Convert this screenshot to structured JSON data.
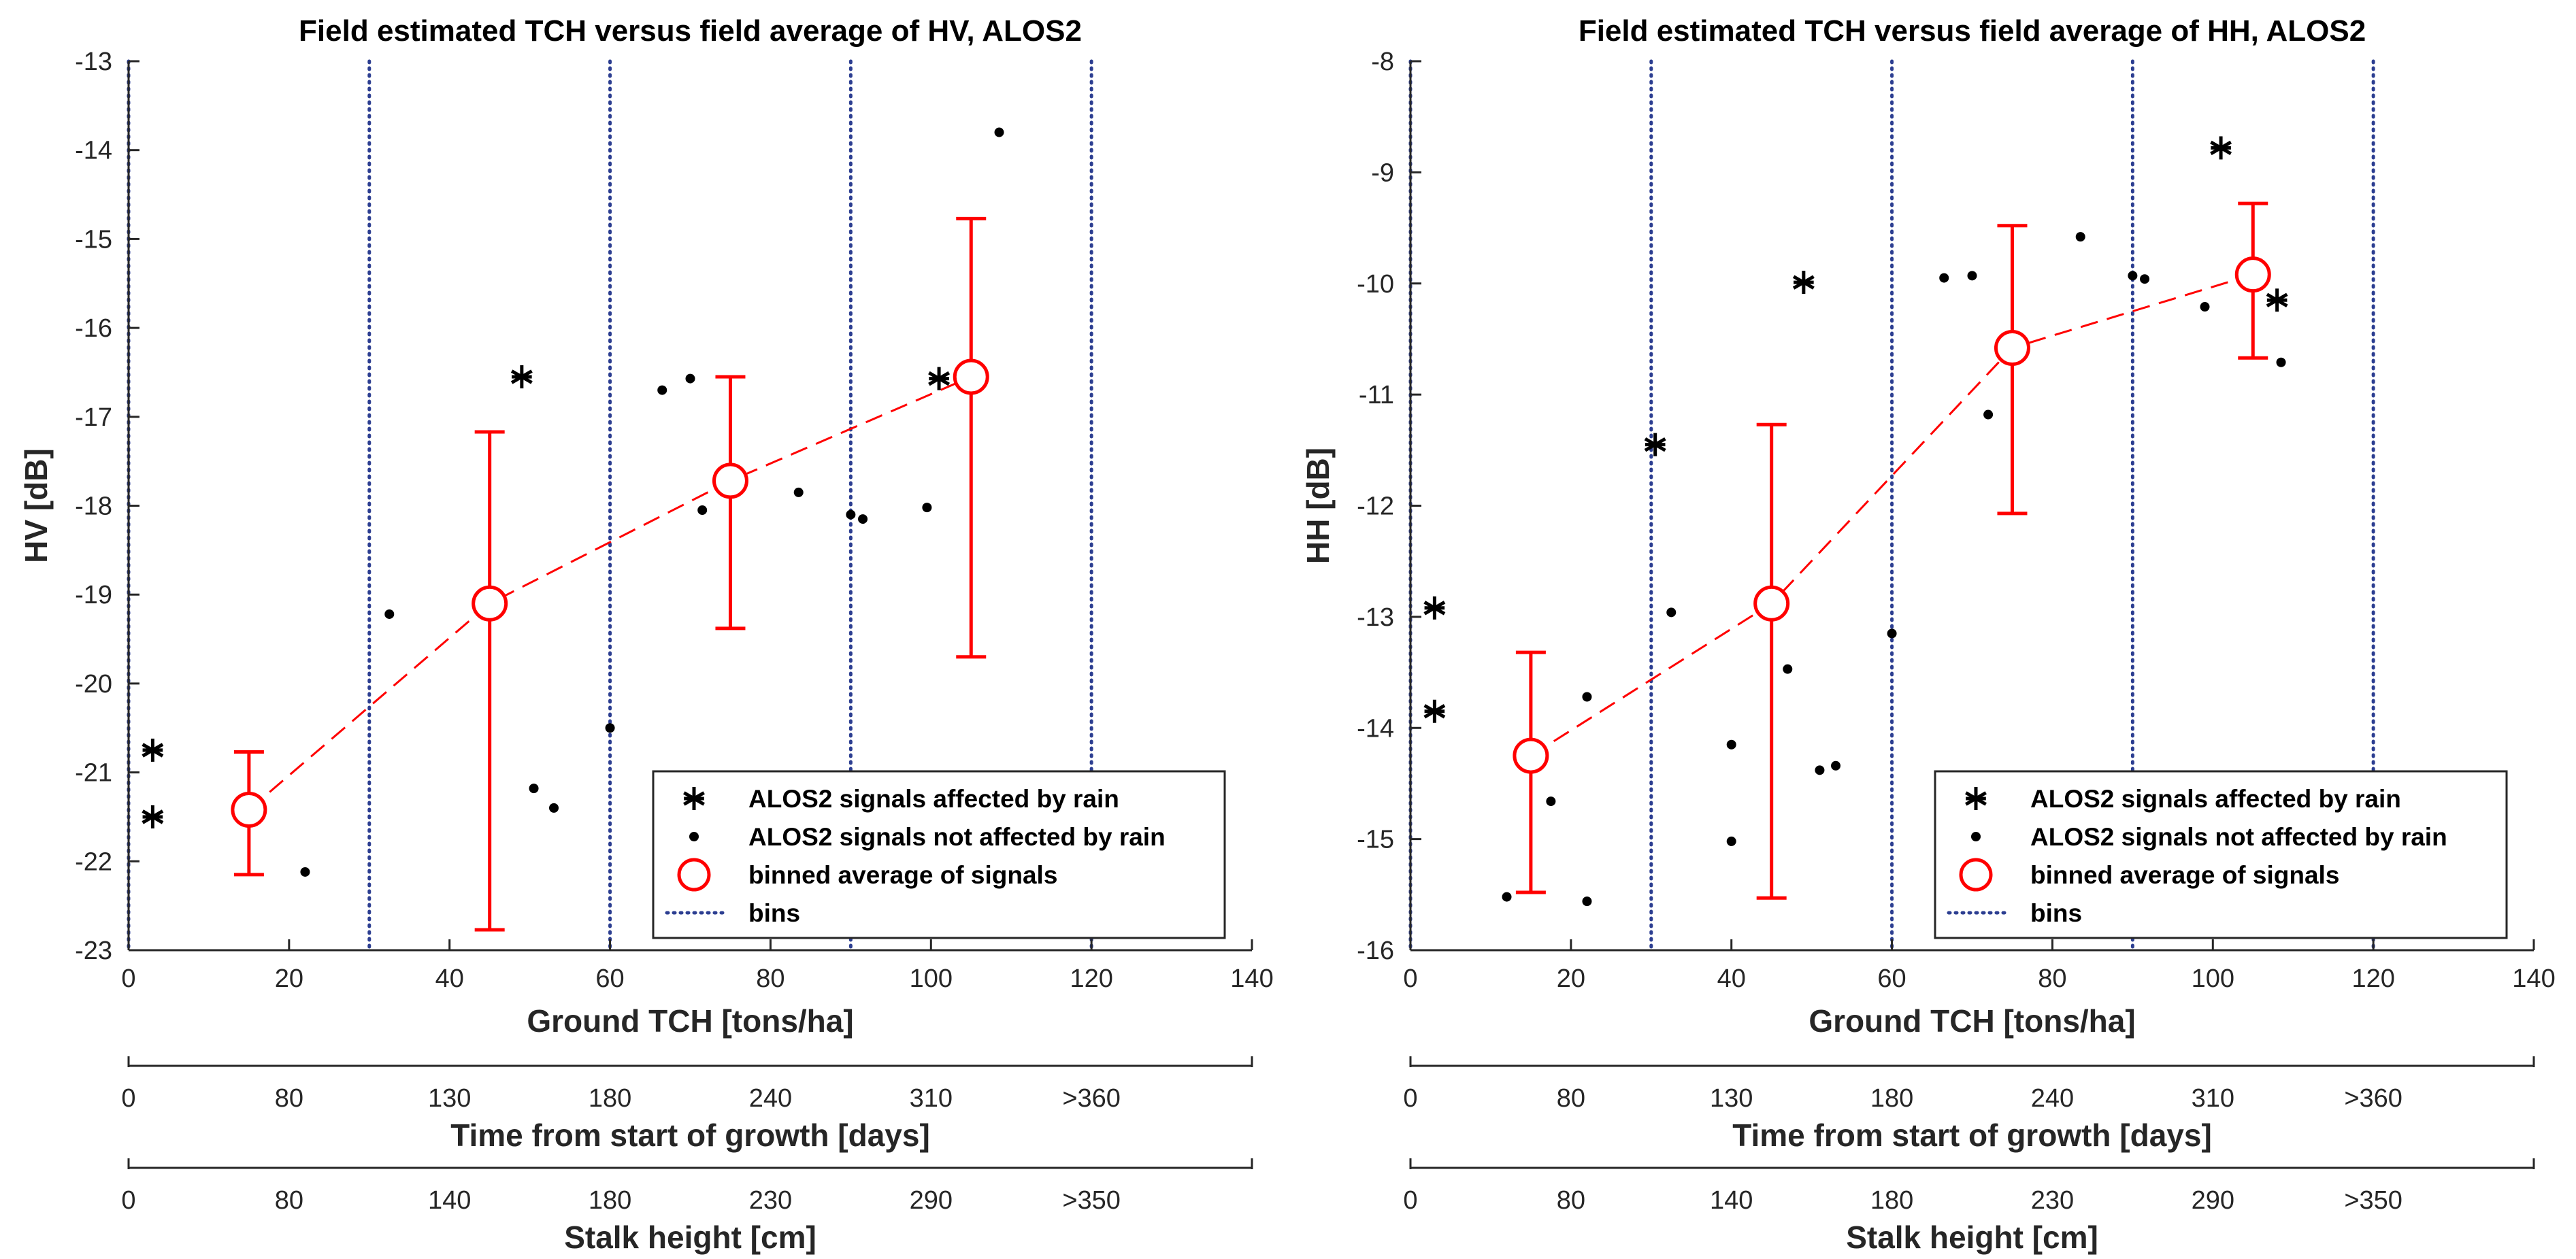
{
  "chart_data": [
    {
      "type": "scatter",
      "title": "Field estimated TCH versus field average of HV, ALOS2",
      "xlabel": "Ground TCH [tons/ha]",
      "ylabel": "HV [dB]",
      "xlim": [
        0,
        140
      ],
      "ylim": [
        -23,
        -13
      ],
      "xticks": [
        "0",
        "20",
        "40",
        "60",
        "80",
        "100",
        "120",
        "140"
      ],
      "yticks": [
        "-23",
        "-22",
        "-21",
        "-20",
        "-19",
        "-18",
        "-17",
        "-16",
        "-15",
        "-14",
        "-13"
      ],
      "bin_edges": [
        0,
        30,
        60,
        90,
        120
      ],
      "series": [
        {
          "name": "ALOS2 signals affected by rain",
          "marker": "asterisk",
          "color": "#000000",
          "x": [
            3,
            3,
            49,
            101
          ],
          "y": [
            -20.75,
            -21.5,
            -16.55,
            -16.57
          ]
        },
        {
          "name": "ALOS2 signals not affected by rain",
          "marker": "dot",
          "color": "#000000",
          "x": [
            22,
            32.5,
            50.5,
            53,
            60,
            66.5,
            70,
            71.5,
            83.5,
            90,
            91.5,
            99.5,
            108.5
          ],
          "y": [
            -22.12,
            -19.22,
            -21.18,
            -21.4,
            -20.5,
            -16.7,
            -16.57,
            -18.05,
            -17.85,
            -18.1,
            -18.15,
            -18.02,
            -13.8
          ]
        },
        {
          "name": "binned average of signals",
          "marker": "circle",
          "color": "#ff0000",
          "x": [
            15,
            45,
            75,
            105
          ],
          "y": [
            -21.42,
            -19.1,
            -17.72,
            -16.55
          ],
          "err_low": [
            -22.15,
            -22.77,
            -19.38,
            -19.7
          ],
          "err_high": [
            -20.77,
            -17.17,
            -16.55,
            -14.77
          ]
        },
        {
          "name": "bins",
          "marker": "dotted-line",
          "color": "#2c3e91"
        }
      ],
      "secondary_axes": [
        {
          "label": "Time from start of growth [days]",
          "ticks": [
            "0",
            "80",
            "130",
            "180",
            "240",
            "310",
            ">360"
          ]
        },
        {
          "label": "Stalk height [cm]",
          "ticks": [
            "0",
            "80",
            "140",
            "180",
            "230",
            "290",
            ">350"
          ]
        }
      ]
    },
    {
      "type": "scatter",
      "title": "Field estimated TCH versus field average of HH, ALOS2",
      "xlabel": "Ground TCH [tons/ha]",
      "ylabel": "HH [dB]",
      "xlim": [
        0,
        140
      ],
      "ylim": [
        -16,
        -8
      ],
      "xticks": [
        "0",
        "20",
        "40",
        "60",
        "80",
        "100",
        "120",
        "140"
      ],
      "yticks": [
        "-16",
        "-15",
        "-14",
        "-13",
        "-12",
        "-11",
        "-10",
        "-9",
        "-8"
      ],
      "bin_edges": [
        0,
        30,
        60,
        90,
        120
      ],
      "series": [
        {
          "name": "ALOS2 signals affected by rain",
          "marker": "asterisk",
          "color": "#000000",
          "x": [
            3,
            3,
            30.5,
            49,
            101,
            108
          ],
          "y": [
            -12.92,
            -13.85,
            -11.45,
            -9.99,
            -8.78,
            -10.15
          ]
        },
        {
          "name": "ALOS2 signals not affected by rain",
          "marker": "dot",
          "color": "#000000",
          "x": [
            12,
            17.5,
            22,
            22,
            32.5,
            40,
            40,
            47,
            51,
            53,
            60,
            66.5,
            70,
            72,
            83.5,
            90,
            91.5,
            99,
            108.5
          ],
          "y": [
            -15.52,
            -14.66,
            -13.72,
            -15.56,
            -12.96,
            -14.15,
            -15.02,
            -13.47,
            -14.38,
            -14.34,
            -13.15,
            -9.95,
            -9.93,
            -11.18,
            -9.58,
            -9.93,
            -9.96,
            -10.21,
            -10.71
          ]
        },
        {
          "name": "binned average of signals",
          "marker": "circle",
          "color": "#ff0000",
          "x": [
            15,
            45,
            75,
            105
          ],
          "y": [
            -14.25,
            -12.88,
            -10.58,
            -9.92
          ],
          "err_low": [
            -15.48,
            -15.53,
            -12.07,
            -10.67
          ],
          "err_high": [
            -13.32,
            -11.27,
            -9.48,
            -9.28
          ]
        },
        {
          "name": "bins",
          "marker": "dotted-line",
          "color": "#2c3e91"
        }
      ],
      "secondary_axes": [
        {
          "label": "Time from start of growth [days]",
          "ticks": [
            "0",
            "80",
            "130",
            "180",
            "240",
            "310",
            ">360"
          ]
        },
        {
          "label": "Stalk height [cm]",
          "ticks": [
            "0",
            "80",
            "140",
            "180",
            "230",
            "290",
            ">350"
          ]
        }
      ]
    }
  ]
}
